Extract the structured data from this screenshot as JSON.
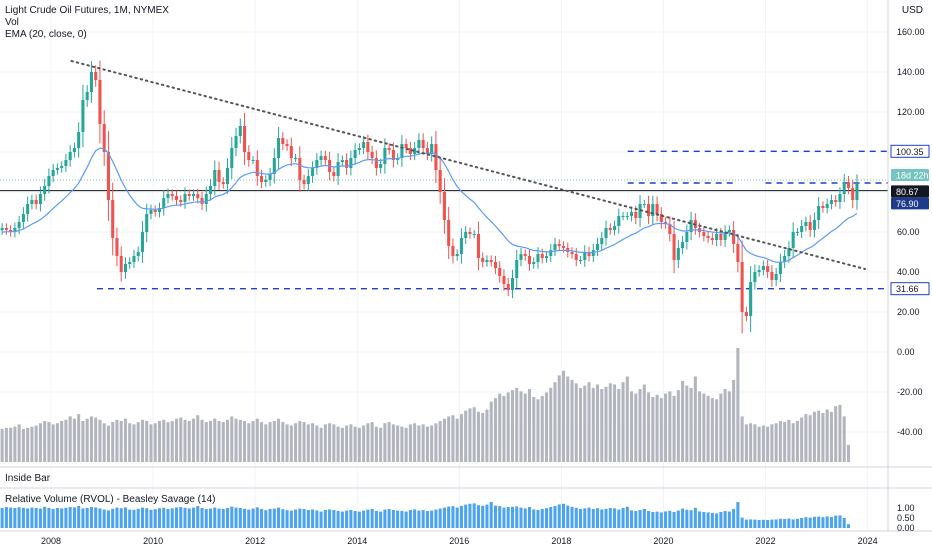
{
  "panes": {
    "main": {
      "title": "Light Crude Oil Futures, 1M, NYMEX",
      "sub1": "Vol",
      "sub2": "EMA (20, close, 0)",
      "currency": "USD"
    },
    "inside_bar": {
      "label": "Inside Bar"
    },
    "rvol": {
      "label": "Relative Volume (RVOL) - Beasley Savage (14)"
    }
  },
  "chart_data": {
    "type": "candlestick",
    "x_ticks": [
      "2008",
      "2010",
      "2012",
      "2014",
      "2016",
      "2018",
      "2020",
      "2022",
      "2024"
    ],
    "y_ticks": [
      "160.00",
      "140.00",
      "120.00",
      "100.00",
      "80.00",
      "60.00",
      "40.00",
      "20.00",
      "0.00",
      "-20.00",
      "-40.00"
    ],
    "ylim": [
      -55,
      168
    ],
    "rvol_ticks": [
      "1.00",
      "0.50",
      "0.00"
    ],
    "price_labels": {
      "countdown": "18d 22h",
      "last": "80.67",
      "ema": "76.90",
      "upper_level": "100.35",
      "lower_level": "31.66"
    },
    "levels": {
      "upper": 100.35,
      "lower": 31.66,
      "horizontal": 80.67
    },
    "trendline": {
      "x": [
        2008.4,
        2023.95
      ],
      "y": [
        145.5,
        41.5
      ]
    },
    "candles_close": [
      62,
      61,
      60,
      62,
      65,
      69,
      74,
      76,
      74,
      79,
      83,
      88,
      91,
      92,
      93,
      96,
      100,
      102,
      110,
      126,
      130,
      140,
      136,
      114,
      100,
      76,
      57,
      48,
      40,
      44,
      45,
      48,
      50,
      60,
      69,
      71,
      70,
      72,
      77,
      79,
      78,
      76,
      75,
      79,
      78,
      79,
      77,
      74,
      79,
      83,
      91,
      85,
      84,
      92,
      102,
      108,
      113,
      100,
      96,
      96,
      88,
      85,
      86,
      89,
      97,
      107,
      104,
      103,
      97,
      97,
      86,
      84,
      88,
      92,
      96,
      98,
      96,
      90,
      88,
      95,
      96,
      92,
      97,
      101,
      102,
      105,
      100,
      97,
      92,
      94,
      102,
      101,
      96,
      97,
      104,
      102,
      99,
      102,
      106,
      102,
      99,
      104,
      91,
      80,
      66,
      53,
      48,
      49,
      57,
      60,
      59,
      59,
      47,
      45,
      46,
      45,
      42,
      38,
      34,
      31,
      37,
      46,
      49,
      48,
      44,
      45,
      49,
      47,
      48,
      51,
      54,
      53,
      52,
      50,
      49,
      46,
      46,
      50,
      48,
      51,
      54,
      57,
      62,
      61,
      63,
      68,
      68,
      68,
      70,
      67,
      74,
      74,
      68,
      74,
      69,
      65,
      64,
      59,
      46,
      52,
      55,
      60,
      66,
      62,
      60,
      58,
      57,
      56,
      59,
      56,
      60,
      61,
      54,
      45,
      20,
      18,
      35,
      40,
      41,
      43,
      40,
      36,
      39,
      45,
      48,
      52,
      60,
      60,
      63,
      65,
      61,
      66,
      73,
      72,
      74,
      76,
      75,
      79,
      85,
      82,
      76,
      84
    ],
    "volume_rel": [
      0.29,
      0.3,
      0.3,
      0.31,
      0.33,
      0.29,
      0.3,
      0.31,
      0.32,
      0.34,
      0.36,
      0.35,
      0.33,
      0.34,
      0.36,
      0.37,
      0.4,
      0.38,
      0.42,
      0.36,
      0.38,
      0.4,
      0.39,
      0.37,
      0.34,
      0.32,
      0.35,
      0.37,
      0.36,
      0.38,
      0.34,
      0.33,
      0.35,
      0.37,
      0.36,
      0.33,
      0.34,
      0.36,
      0.37,
      0.35,
      0.36,
      0.38,
      0.39,
      0.37,
      0.36,
      0.38,
      0.41,
      0.37,
      0.35,
      0.36,
      0.38,
      0.36,
      0.35,
      0.37,
      0.4,
      0.38,
      0.37,
      0.36,
      0.34,
      0.36,
      0.38,
      0.35,
      0.33,
      0.35,
      0.36,
      0.38,
      0.35,
      0.33,
      0.32,
      0.34,
      0.36,
      0.35,
      0.33,
      0.34,
      0.32,
      0.3,
      0.33,
      0.34,
      0.33,
      0.31,
      0.3,
      0.32,
      0.33,
      0.31,
      0.3,
      0.32,
      0.34,
      0.35,
      0.31,
      0.3,
      0.34,
      0.35,
      0.33,
      0.32,
      0.31,
      0.3,
      0.33,
      0.34,
      0.32,
      0.33,
      0.31,
      0.32,
      0.34,
      0.36,
      0.38,
      0.4,
      0.41,
      0.38,
      0.42,
      0.45,
      0.47,
      0.48,
      0.44,
      0.43,
      0.46,
      0.53,
      0.56,
      0.6,
      0.58,
      0.61,
      0.63,
      0.65,
      0.62,
      0.6,
      0.64,
      0.57,
      0.55,
      0.58,
      0.61,
      0.65,
      0.7,
      0.76,
      0.8,
      0.75,
      0.72,
      0.69,
      0.65,
      0.67,
      0.7,
      0.65,
      0.68,
      0.64,
      0.66,
      0.69,
      0.68,
      0.64,
      0.7,
      0.75,
      0.62,
      0.6,
      0.64,
      0.68,
      0.61,
      0.57,
      0.59,
      0.56,
      0.6,
      0.62,
      0.58,
      0.63,
      0.71,
      0.67,
      0.65,
      0.75,
      0.62,
      0.6,
      0.58,
      0.56,
      0.55,
      0.6,
      0.64,
      0.62,
      0.72,
      1.0,
      0.4,
      0.33,
      0.34,
      0.33,
      0.31,
      0.32,
      0.31,
      0.33,
      0.34,
      0.36,
      0.35,
      0.37,
      0.34,
      0.36,
      0.39,
      0.42,
      0.41,
      0.44,
      0.45,
      0.43,
      0.46,
      0.44,
      0.49,
      0.5,
      0.4,
      0.15
    ],
    "rvol_values": [
      1.0,
      1.05,
      1.02,
      1.0,
      1.04,
      1.01,
      0.98,
      1.02,
      1.0,
      0.97,
      1.06,
      1.0,
      0.95,
      1.0,
      0.98,
      1.01,
      1.05,
      1.03,
      1.1,
      0.98,
      1.0,
      1.05,
      1.03,
      0.98,
      0.92,
      0.88,
      0.96,
      1.02,
      0.99,
      1.03,
      0.92,
      0.91,
      0.96,
      1.02,
      0.99,
      0.91,
      0.94,
      0.99,
      1.01,
      0.95,
      0.98,
      1.03,
      1.05,
      1.01,
      0.98,
      1.02,
      1.1,
      1.0,
      0.95,
      0.97,
      1.02,
      0.97,
      0.95,
      1.0,
      1.07,
      1.02,
      1.0,
      0.96,
      0.92,
      0.97,
      1.03,
      0.95,
      0.89,
      0.95,
      0.97,
      1.02,
      0.94,
      0.89,
      0.87,
      0.92,
      0.97,
      0.95,
      0.9,
      0.93,
      0.88,
      0.82,
      0.9,
      0.93,
      0.9,
      0.85,
      0.82,
      0.87,
      0.9,
      0.85,
      0.82,
      0.87,
      0.92,
      0.95,
      0.85,
      0.82,
      0.92,
      0.95,
      0.9,
      0.87,
      0.85,
      0.82,
      0.9,
      0.93,
      0.87,
      0.9,
      0.85,
      0.87,
      0.92,
      0.97,
      1.02,
      1.07,
      1.09,
      1.02,
      1.11,
      1.17,
      1.21,
      1.23,
      1.14,
      1.11,
      1.17,
      1.3,
      1.12,
      1.1,
      1.02,
      1.05,
      1.06,
      1.08,
      1.02,
      0.98,
      1.05,
      0.93,
      0.9,
      0.95,
      0.99,
      1.05,
      1.1,
      1.18,
      1.21,
      1.12,
      1.06,
      1.01,
      0.95,
      0.98,
      1.02,
      0.95,
      0.99,
      0.93,
      0.96,
      1.0,
      0.98,
      0.92,
      1.0,
      1.06,
      0.88,
      0.85,
      0.9,
      0.95,
      0.85,
      0.8,
      0.82,
      0.78,
      0.83,
      0.86,
      0.8,
      0.87,
      0.97,
      0.91,
      0.89,
      1.01,
      0.83,
      0.8,
      0.78,
      0.75,
      0.73,
      0.8,
      0.85,
      0.82,
      0.95,
      1.3,
      0.52,
      0.42,
      0.43,
      0.42,
      0.4,
      0.41,
      0.4,
      0.42,
      0.43,
      0.46,
      0.45,
      0.47,
      0.43,
      0.46,
      0.5,
      0.54,
      0.52,
      0.56,
      0.57,
      0.54,
      0.58,
      0.55,
      0.62,
      0.63,
      0.5,
      0.19
    ]
  },
  "colors": {
    "up": "#26a69a",
    "down": "#ef5350",
    "ema": "#5b9cf6",
    "volume": "#b2b5be",
    "rvol": "#4ca3f0",
    "level_line": "#1e3ecf",
    "trendline": "#555555",
    "last_price_bg": "#131722",
    "ema_label_bg": "#1e3a8a",
    "countdown_bg": "#74c5c1"
  }
}
